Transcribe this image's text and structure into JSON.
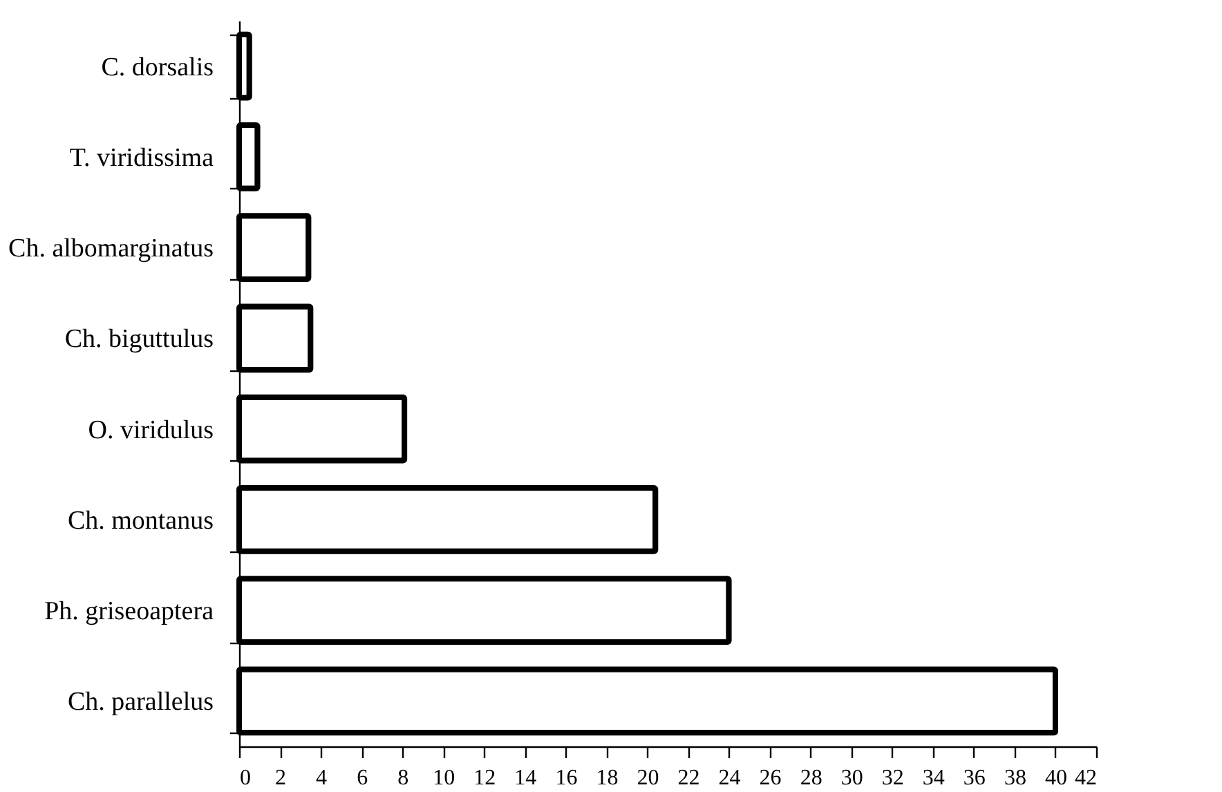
{
  "chart_data": {
    "type": "bar",
    "orientation": "horizontal",
    "categories": [
      "C. dorsalis",
      "T. viridissima",
      "Ch. albomarginatus",
      "Ch. biguttulus",
      "O. viridulus",
      "Ch. montanus",
      "Ph. griseoaptera",
      "Ch. parallelus"
    ],
    "values": [
      0.5,
      0.9,
      3.4,
      3.5,
      8.1,
      20.4,
      24.0,
      40.0
    ],
    "color": "#ffffff",
    "xlim": [
      0,
      42
    ],
    "xticks": [
      0,
      2,
      4,
      6,
      8,
      10,
      12,
      14,
      16,
      18,
      20,
      22,
      24,
      26,
      28,
      30,
      32,
      34,
      36,
      38,
      40,
      42
    ],
    "grid": false
  }
}
